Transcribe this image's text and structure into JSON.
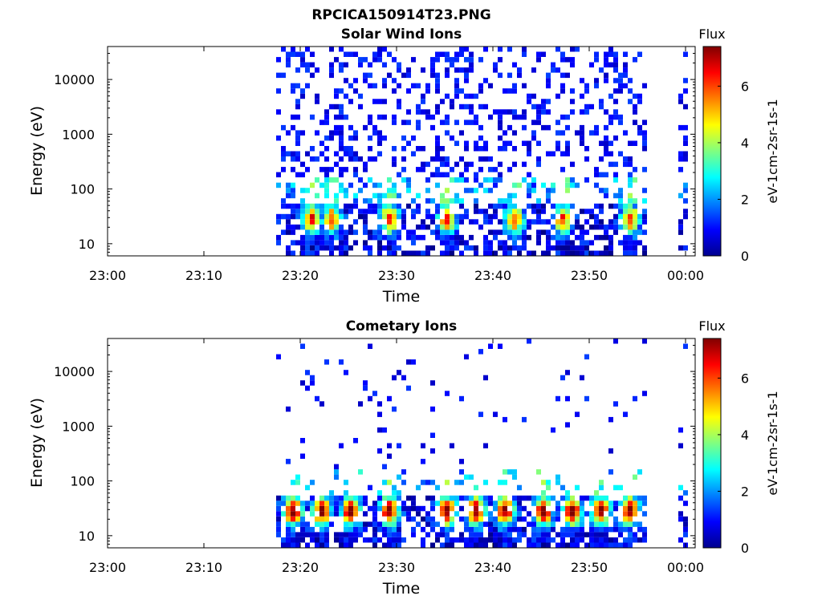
{
  "figure_title": "RPCICA150914T23.PNG",
  "chart_data": [
    {
      "type": "heatmap",
      "title": "Solar Wind Ions",
      "xlabel": "Time",
      "ylabel": "Energy (eV)",
      "x_ticks": [
        "23:00",
        "23:10",
        "23:20",
        "23:30",
        "23:40",
        "23:50",
        "00:00"
      ],
      "x_range": [
        "23:00",
        "00:01"
      ],
      "y_scale": "log",
      "y_ticks": [
        10,
        100,
        1000,
        10000
      ],
      "y_range": [
        6,
        40000
      ],
      "colorbar": {
        "title": "Flux",
        "label": "eV-1cm-2sr-1s-1",
        "range": [
          0,
          7.4
        ],
        "ticks": [
          0,
          2,
          4,
          6
        ]
      },
      "data_intervals": [
        [
          "23:17:30",
          "23:55:45"
        ],
        [
          "23:59:15",
          "23:59:55"
        ]
      ],
      "low_energy_peak_times": [
        "23:21",
        "23:23",
        "23:29",
        "23:35",
        "23:42",
        "23:47",
        "23:54"
      ],
      "peak_flux_level": 5.5,
      "sparse_high_energy_flux_level": 0.5
    },
    {
      "type": "heatmap",
      "title": "Cometary Ions",
      "xlabel": "Time",
      "ylabel": "Energy (eV)",
      "x_ticks": [
        "23:00",
        "23:10",
        "23:20",
        "23:30",
        "23:40",
        "23:50",
        "00:00"
      ],
      "x_range": [
        "23:00",
        "00:01"
      ],
      "y_scale": "log",
      "y_ticks": [
        10,
        100,
        1000,
        10000
      ],
      "y_range": [
        6,
        40000
      ],
      "colorbar": {
        "title": "Flux",
        "label": "eV-1cm-2sr-1s-1",
        "range": [
          0,
          7.4
        ],
        "ticks": [
          0,
          2,
          4,
          6
        ]
      },
      "data_intervals": [
        [
          "23:17:30",
          "23:55:45"
        ],
        [
          "23:59:15",
          "23:59:55"
        ]
      ],
      "low_energy_peak_times": [
        "23:19",
        "23:22",
        "23:25",
        "23:29",
        "23:35",
        "23:38",
        "23:41",
        "23:45",
        "23:48",
        "23:51",
        "23:54"
      ],
      "peak_flux_level": 7.0,
      "sparse_high_energy_flux_level": 0.5
    }
  ]
}
